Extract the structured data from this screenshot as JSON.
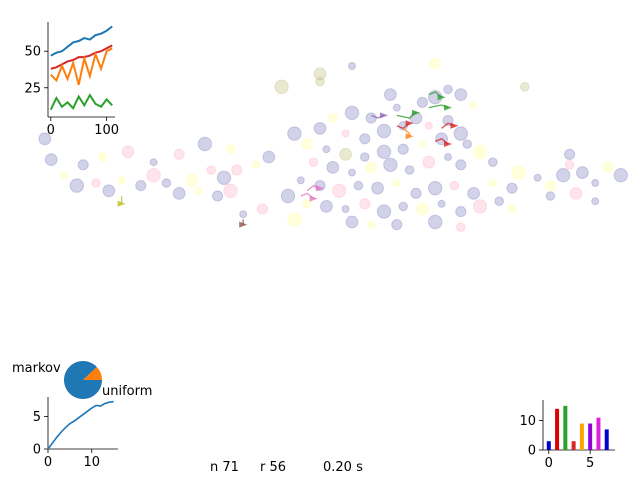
{
  "status": {
    "n": "n 71",
    "r": "r 56",
    "time": "0.20 s"
  },
  "chart_data": [
    {
      "id": "scatter-field",
      "type": "scatter",
      "title": "",
      "xlabel": "",
      "ylabel": "",
      "xlim": [
        0,
        100
      ],
      "ylim": [
        0,
        100
      ],
      "grid": false,
      "axes_visible": false,
      "points": [
        {
          "x": 55,
          "y": 90,
          "c": "#7f7fbf"
        },
        {
          "x": 68,
          "y": 91,
          "c": "#ffff99"
        },
        {
          "x": 44,
          "y": 82,
          "c": "#bfbf7f"
        },
        {
          "x": 50,
          "y": 84,
          "c": "#bfbf7f"
        },
        {
          "x": 61,
          "y": 79,
          "c": "#7f7fbf"
        },
        {
          "x": 62,
          "y": 74,
          "c": "#7f7fbf"
        },
        {
          "x": 66,
          "y": 76,
          "c": "#7f7fbf"
        },
        {
          "x": 68,
          "y": 78,
          "c": "#7f7fbf"
        },
        {
          "x": 70,
          "y": 81,
          "c": "#7f7fbf"
        },
        {
          "x": 72,
          "y": 79,
          "c": "#7f7fbf"
        },
        {
          "x": 74,
          "y": 75,
          "c": "#ffff99"
        },
        {
          "x": 58,
          "y": 70,
          "c": "#7f7fbf"
        },
        {
          "x": 55,
          "y": 72,
          "c": "#7f7fbf"
        },
        {
          "x": 52,
          "y": 70,
          "c": "#ffff99"
        },
        {
          "x": 50,
          "y": 66,
          "c": "#7f7fbf"
        },
        {
          "x": 54,
          "y": 64,
          "c": "#ffb3c6"
        },
        {
          "x": 57,
          "y": 62,
          "c": "#7f7fbf"
        },
        {
          "x": 60,
          "y": 65,
          "c": "#7f7fbf"
        },
        {
          "x": 63,
          "y": 67,
          "c": "#7f7fbf"
        },
        {
          "x": 65,
          "y": 70,
          "c": "#7f7fbf"
        },
        {
          "x": 67,
          "y": 67,
          "c": "#ffb3c6"
        },
        {
          "x": 70,
          "y": 69,
          "c": "#7f7fbf"
        },
        {
          "x": 72,
          "y": 64,
          "c": "#7f7fbf"
        },
        {
          "x": 73,
          "y": 60,
          "c": "#7f7fbf"
        },
        {
          "x": 69,
          "y": 62,
          "c": "#7f7fbf"
        },
        {
          "x": 66,
          "y": 60,
          "c": "#ffff99"
        },
        {
          "x": 63,
          "y": 58,
          "c": "#7f7fbf"
        },
        {
          "x": 60,
          "y": 57,
          "c": "#7f7fbf"
        },
        {
          "x": 57,
          "y": 55,
          "c": "#7f7fbf"
        },
        {
          "x": 54,
          "y": 56,
          "c": "#bfbf7f"
        },
        {
          "x": 51,
          "y": 58,
          "c": "#7f7fbf"
        },
        {
          "x": 48,
          "y": 60,
          "c": "#ffff99"
        },
        {
          "x": 46,
          "y": 64,
          "c": "#7f7fbf"
        },
        {
          "x": 49,
          "y": 53,
          "c": "#ffb3c6"
        },
        {
          "x": 52,
          "y": 51,
          "c": "#7f7fbf"
        },
        {
          "x": 55,
          "y": 49,
          "c": "#7f7fbf"
        },
        {
          "x": 58,
          "y": 51,
          "c": "#ffff99"
        },
        {
          "x": 61,
          "y": 52,
          "c": "#7f7fbf"
        },
        {
          "x": 64,
          "y": 50,
          "c": "#7f7fbf"
        },
        {
          "x": 67,
          "y": 53,
          "c": "#ffb3c6"
        },
        {
          "x": 70,
          "y": 55,
          "c": "#7f7fbf"
        },
        {
          "x": 72,
          "y": 52,
          "c": "#7f7fbf"
        },
        {
          "x": 75,
          "y": 57,
          "c": "#ffff99"
        },
        {
          "x": 77,
          "y": 53,
          "c": "#7f7fbf"
        },
        {
          "x": 42,
          "y": 55,
          "c": "#7f7fbf"
        },
        {
          "x": 40,
          "y": 52,
          "c": "#ffff99"
        },
        {
          "x": 37,
          "y": 50,
          "c": "#ffb3c6"
        },
        {
          "x": 35,
          "y": 47,
          "c": "#7f7fbf"
        },
        {
          "x": 33,
          "y": 50,
          "c": "#ffb3c6"
        },
        {
          "x": 30,
          "y": 46,
          "c": "#ffff99"
        },
        {
          "x": 47,
          "y": 46,
          "c": "#7f7fbf"
        },
        {
          "x": 50,
          "y": 44,
          "c": "#7f7fbf"
        },
        {
          "x": 53,
          "y": 42,
          "c": "#ffb3c6"
        },
        {
          "x": 56,
          "y": 44,
          "c": "#7f7fbf"
        },
        {
          "x": 59,
          "y": 43,
          "c": "#7f7fbf"
        },
        {
          "x": 62,
          "y": 45,
          "c": "#ffff99"
        },
        {
          "x": 65,
          "y": 41,
          "c": "#7f7fbf"
        },
        {
          "x": 68,
          "y": 43,
          "c": "#7f7fbf"
        },
        {
          "x": 71,
          "y": 44,
          "c": "#ffb3c6"
        },
        {
          "x": 74,
          "y": 41,
          "c": "#7f7fbf"
        },
        {
          "x": 77,
          "y": 45,
          "c": "#ffff99"
        },
        {
          "x": 80,
          "y": 43,
          "c": "#7f7fbf"
        },
        {
          "x": 45,
          "y": 40,
          "c": "#7f7fbf"
        },
        {
          "x": 48,
          "y": 37,
          "c": "#ffff99"
        },
        {
          "x": 51,
          "y": 36,
          "c": "#7f7fbf"
        },
        {
          "x": 54,
          "y": 35,
          "c": "#7f7fbf"
        },
        {
          "x": 57,
          "y": 37,
          "c": "#ffb3c6"
        },
        {
          "x": 60,
          "y": 34,
          "c": "#7f7fbf"
        },
        {
          "x": 63,
          "y": 36,
          "c": "#7f7fbf"
        },
        {
          "x": 66,
          "y": 35,
          "c": "#ffff99"
        },
        {
          "x": 69,
          "y": 37,
          "c": "#7f7fbf"
        },
        {
          "x": 72,
          "y": 34,
          "c": "#7f7fbf"
        },
        {
          "x": 75,
          "y": 36,
          "c": "#ffb3c6"
        },
        {
          "x": 78,
          "y": 38,
          "c": "#7f7fbf"
        },
        {
          "x": 55,
          "y": 30,
          "c": "#7f7fbf"
        },
        {
          "x": 58,
          "y": 29,
          "c": "#ffff99"
        },
        {
          "x": 62,
          "y": 29,
          "c": "#7f7fbf"
        },
        {
          "x": 68,
          "y": 30,
          "c": "#7f7fbf"
        },
        {
          "x": 72,
          "y": 28,
          "c": "#ffb3c6"
        },
        {
          "x": 8,
          "y": 54,
          "c": "#7f7fbf"
        },
        {
          "x": 10,
          "y": 48,
          "c": "#ffff99"
        },
        {
          "x": 13,
          "y": 52,
          "c": "#7f7fbf"
        },
        {
          "x": 12,
          "y": 44,
          "c": "#7f7fbf"
        },
        {
          "x": 15,
          "y": 45,
          "c": "#ffb3c6"
        },
        {
          "x": 17,
          "y": 42,
          "c": "#7f7fbf"
        },
        {
          "x": 19,
          "y": 46,
          "c": "#ffff99"
        },
        {
          "x": 22,
          "y": 44,
          "c": "#7f7fbf"
        },
        {
          "x": 24,
          "y": 48,
          "c": "#ffb3c6"
        },
        {
          "x": 26,
          "y": 45,
          "c": "#7f7fbf"
        },
        {
          "x": 28,
          "y": 41,
          "c": "#7f7fbf"
        },
        {
          "x": 31,
          "y": 42,
          "c": "#ffff99"
        },
        {
          "x": 34,
          "y": 40,
          "c": "#7f7fbf"
        },
        {
          "x": 36,
          "y": 42,
          "c": "#ffb3c6"
        },
        {
          "x": 16,
          "y": 55,
          "c": "#ffff99"
        },
        {
          "x": 20,
          "y": 57,
          "c": "#ffb3c6"
        },
        {
          "x": 24,
          "y": 53,
          "c": "#7f7fbf"
        },
        {
          "x": 28,
          "y": 56,
          "c": "#ffb3c6"
        },
        {
          "x": 32,
          "y": 60,
          "c": "#7f7fbf"
        },
        {
          "x": 36,
          "y": 58,
          "c": "#ffff99"
        },
        {
          "x": 7,
          "y": 62,
          "c": "#7f7fbf"
        },
        {
          "x": 84,
          "y": 47,
          "c": "#7f7fbf"
        },
        {
          "x": 86,
          "y": 44,
          "c": "#ffff99"
        },
        {
          "x": 88,
          "y": 48,
          "c": "#7f7fbf"
        },
        {
          "x": 89,
          "y": 52,
          "c": "#ffb3c6"
        },
        {
          "x": 91,
          "y": 49,
          "c": "#7f7fbf"
        },
        {
          "x": 93,
          "y": 45,
          "c": "#7f7fbf"
        },
        {
          "x": 95,
          "y": 51,
          "c": "#ffff99"
        },
        {
          "x": 97,
          "y": 48,
          "c": "#7f7fbf"
        },
        {
          "x": 86,
          "y": 40,
          "c": "#7f7fbf"
        },
        {
          "x": 90,
          "y": 41,
          "c": "#ffb3c6"
        },
        {
          "x": 93,
          "y": 38,
          "c": "#7f7fbf"
        },
        {
          "x": 89,
          "y": 56,
          "c": "#7f7fbf"
        },
        {
          "x": 81,
          "y": 49,
          "c": "#ffff99"
        },
        {
          "x": 82,
          "y": 82,
          "c": "#bfbf7f"
        },
        {
          "x": 50,
          "y": 87,
          "c": "#bfbf7f"
        },
        {
          "x": 38,
          "y": 33,
          "c": "#7f7fbf"
        },
        {
          "x": 41,
          "y": 35,
          "c": "#ffb3c6"
        },
        {
          "x": 46,
          "y": 31,
          "c": "#ffff99"
        },
        {
          "x": 80,
          "y": 35,
          "c": "#ffff99"
        }
      ],
      "trails": [
        {
          "c": "#2ca02c",
          "x": [
            67,
            68,
            69
          ],
          "y": [
            79,
            80,
            78
          ]
        },
        {
          "c": "#2ca02c",
          "x": [
            67,
            69,
            70
          ],
          "y": [
            74,
            75,
            74
          ]
        },
        {
          "c": "#2ca02c",
          "x": [
            62,
            64,
            65
          ],
          "y": [
            71,
            70,
            72
          ]
        },
        {
          "c": "#d62728",
          "x": [
            69,
            70,
            71
          ],
          "y": [
            66,
            68,
            67
          ]
        },
        {
          "c": "#d62728",
          "x": [
            68,
            69,
            70
          ],
          "y": [
            61,
            62,
            60
          ]
        },
        {
          "c": "#d62728",
          "x": [
            62,
            63,
            64
          ],
          "y": [
            67,
            66,
            68
          ]
        },
        {
          "c": "#9467bd",
          "x": [
            58,
            59,
            60
          ],
          "y": [
            71,
            70,
            71
          ]
        },
        {
          "c": "#ff7f0e",
          "x": [
            63,
            64,
            64
          ],
          "y": [
            66,
            64,
            63
          ]
        },
        {
          "c": "#e377c2",
          "x": [
            48,
            49,
            50
          ],
          "y": [
            42,
            44,
            43
          ]
        },
        {
          "c": "#e377c2",
          "x": [
            47,
            48,
            49
          ],
          "y": [
            40,
            41,
            39
          ]
        },
        {
          "c": "#bcbd22",
          "x": [
            19,
            19,
            19
          ],
          "y": [
            40,
            38,
            37
          ]
        },
        {
          "c": "#8c564b",
          "x": [
            38,
            38,
            38
          ],
          "y": [
            31,
            30,
            29
          ]
        }
      ]
    },
    {
      "id": "line-top",
      "type": "line",
      "title": "",
      "xlabel": "",
      "ylabel": "",
      "xlim": [
        -5,
        115
      ],
      "ylim": [
        5,
        70
      ],
      "xticks": [
        0,
        100
      ],
      "xtick_labels": [
        "0",
        "100"
      ],
      "yticks": [
        25,
        50
      ],
      "ytick_labels": [
        "25",
        "50"
      ],
      "series": [
        {
          "color": "#1f77b4",
          "x": [
            0,
            10,
            20,
            30,
            40,
            50,
            60,
            70,
            80,
            90,
            100,
            110
          ],
          "y": [
            47,
            49,
            50,
            53,
            56,
            57,
            59,
            58,
            61,
            62,
            64,
            67
          ]
        },
        {
          "color": "#d62728",
          "x": [
            0,
            10,
            20,
            30,
            40,
            50,
            60,
            70,
            80,
            90,
            100,
            110
          ],
          "y": [
            38,
            39,
            41,
            43,
            44,
            46,
            46,
            47,
            49,
            50,
            52,
            54
          ]
        },
        {
          "color": "#ff7f0e",
          "x": [
            0,
            10,
            20,
            30,
            40,
            50,
            60,
            70,
            80,
            90,
            100,
            110
          ],
          "y": [
            34,
            30,
            40,
            31,
            42,
            27,
            45,
            33,
            48,
            38,
            50,
            52
          ]
        },
        {
          "color": "#2ca02c",
          "x": [
            0,
            10,
            20,
            30,
            40,
            50,
            60,
            70,
            80,
            90,
            100,
            110
          ],
          "y": [
            10,
            18,
            12,
            15,
            11,
            19,
            13,
            20,
            14,
            12,
            17,
            13
          ]
        }
      ]
    },
    {
      "id": "pie",
      "type": "pie",
      "title": "",
      "labels": [
        "markov",
        "uniform"
      ],
      "values": [
        88,
        12
      ],
      "colors": [
        "#1f77b4",
        "#ff7f0e"
      ]
    },
    {
      "id": "line-bottom",
      "type": "line",
      "title": "",
      "xlabel": "",
      "ylabel": "",
      "xlim": [
        0,
        16
      ],
      "ylim": [
        0,
        8
      ],
      "xticks": [
        0,
        10
      ],
      "xtick_labels": [
        "0",
        "10"
      ],
      "yticks": [
        0,
        5
      ],
      "ytick_labels": [
        "0",
        "5"
      ],
      "series": [
        {
          "color": "#1f77b4",
          "x": [
            0,
            1,
            2,
            3,
            4,
            5,
            6,
            7,
            8,
            9,
            10,
            11,
            12,
            13,
            14,
            15
          ],
          "y": [
            0,
            0.9,
            1.8,
            2.6,
            3.3,
            3.9,
            4.3,
            4.8,
            5.3,
            5.8,
            6.3,
            6.7,
            6.6,
            7.0,
            7.2,
            7.3
          ]
        }
      ]
    },
    {
      "id": "bar-right",
      "type": "bar",
      "title": "",
      "xlabel": "",
      "ylabel": "",
      "xlim": [
        -0.7,
        8
      ],
      "ylim": [
        0,
        17
      ],
      "xticks": [
        0,
        5
      ],
      "xtick_labels": [
        "0",
        "5"
      ],
      "yticks": [
        0,
        10
      ],
      "ytick_labels": [
        "0",
        "10"
      ],
      "categories": [
        0,
        1,
        2,
        3,
        4,
        5,
        6,
        7
      ],
      "values": [
        3,
        14,
        15,
        3,
        9,
        9,
        11,
        7
      ],
      "colors": [
        "#0000cc",
        "#dd0000",
        "#2ca02c",
        "#d62728",
        "#ffa500",
        "#9400d3",
        "#e020e0",
        "#0000cc"
      ]
    }
  ]
}
